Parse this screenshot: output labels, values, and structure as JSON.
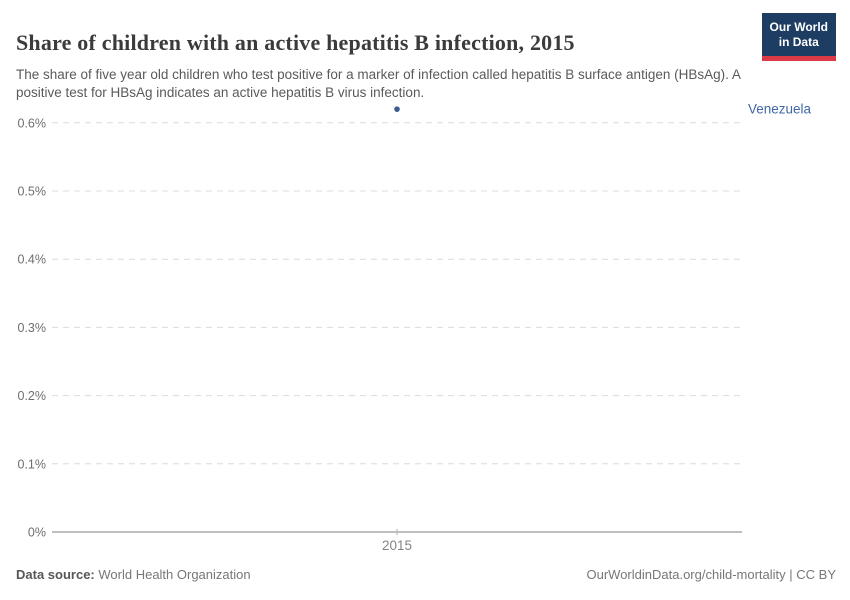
{
  "header": {
    "title": "Share of children with an active hepatitis B infection, 2015",
    "subtitle": "The share of five year old children who test positive for a marker of infection called hepatitis B surface antigen (HBsAg). A positive test for HBsAg indicates an active hepatitis B virus infection.",
    "logo_line1": "Our World",
    "logo_line2": "in Data"
  },
  "chart_data": {
    "type": "scatter",
    "title": "Share of children with an active hepatitis B infection, 2015",
    "unit": "%",
    "series": [
      {
        "name": "Venezuela",
        "points": [
          {
            "x": 2015,
            "y": 0.62
          }
        ]
      }
    ],
    "xlim": [
      2014.5,
      2015.5
    ],
    "ylim": [
      0,
      0.63
    ],
    "grid": true,
    "legend_position": "entity-label-right",
    "y_ticks": [
      {
        "value": 0,
        "label": "0%"
      },
      {
        "value": 0.1,
        "label": "0.1%"
      },
      {
        "value": 0.2,
        "label": "0.2%"
      },
      {
        "value": 0.3,
        "label": "0.3%"
      },
      {
        "value": 0.4,
        "label": "0.4%"
      },
      {
        "value": 0.5,
        "label": "0.5%"
      },
      {
        "value": 0.6,
        "label": "0.6%"
      }
    ],
    "x_ticks": [
      {
        "value": 2015,
        "label": "2015"
      }
    ]
  },
  "colors": {
    "point": "#3d5c8f",
    "entity_label": "#4166a5",
    "grid": "#dcdcdc",
    "axis": "#9a9a9a",
    "tick_mark": "#b3b3b3",
    "y_tick_label": "#6e6e6e",
    "x_tick_label": "#858585",
    "logo_bg": "#1d3d63",
    "logo_stripe": "#dc3a47",
    "title_text": "#3b3b3b",
    "subtitle_text": "#5a5a5a"
  },
  "footer": {
    "source_label": "Data source:",
    "source_value": "World Health Organization",
    "credit": "OurWorldinData.org/child-mortality | CC BY"
  }
}
